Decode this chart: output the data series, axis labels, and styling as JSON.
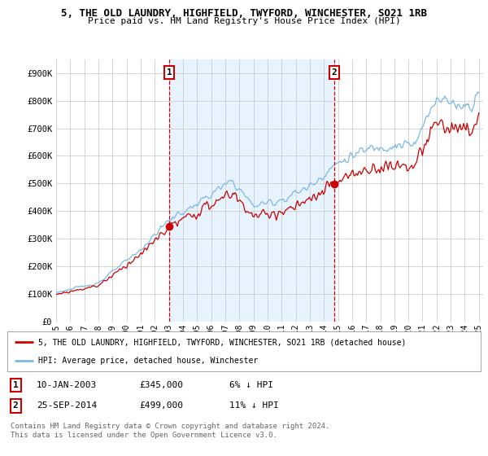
{
  "title": "5, THE OLD LAUNDRY, HIGHFIELD, TWYFORD, WINCHESTER, SO21 1RB",
  "subtitle": "Price paid vs. HM Land Registry's House Price Index (HPI)",
  "ylim": [
    0,
    950000
  ],
  "yticks": [
    0,
    100000,
    200000,
    300000,
    400000,
    500000,
    600000,
    700000,
    800000,
    900000
  ],
  "ytick_labels": [
    "£0",
    "£100K",
    "£200K",
    "£300K",
    "£400K",
    "£500K",
    "£600K",
    "£700K",
    "£800K",
    "£900K"
  ],
  "hpi_color": "#7ab8e8",
  "price_color": "#cc0000",
  "shade_color": "#ddeeff",
  "sale1_date": 2003.04,
  "sale1_price": 345000,
  "sale1_label": "1",
  "sale2_date": 2014.73,
  "sale2_price": 499000,
  "sale2_label": "2",
  "legend_line1": "5, THE OLD LAUNDRY, HIGHFIELD, TWYFORD, WINCHESTER, SO21 1RB (detached house)",
  "legend_line2": "HPI: Average price, detached house, Winchester",
  "table_row1": [
    "1",
    "10-JAN-2003",
    "£345,000",
    "6% ↓ HPI"
  ],
  "table_row2": [
    "2",
    "25-SEP-2014",
    "£499,000",
    "11% ↓ HPI"
  ],
  "footnote1": "Contains HM Land Registry data © Crown copyright and database right 2024.",
  "footnote2": "This data is licensed under the Open Government Licence v3.0.",
  "background_color": "#ffffff",
  "plot_bg_color": "#ffffff",
  "grid_color": "#cccccc"
}
